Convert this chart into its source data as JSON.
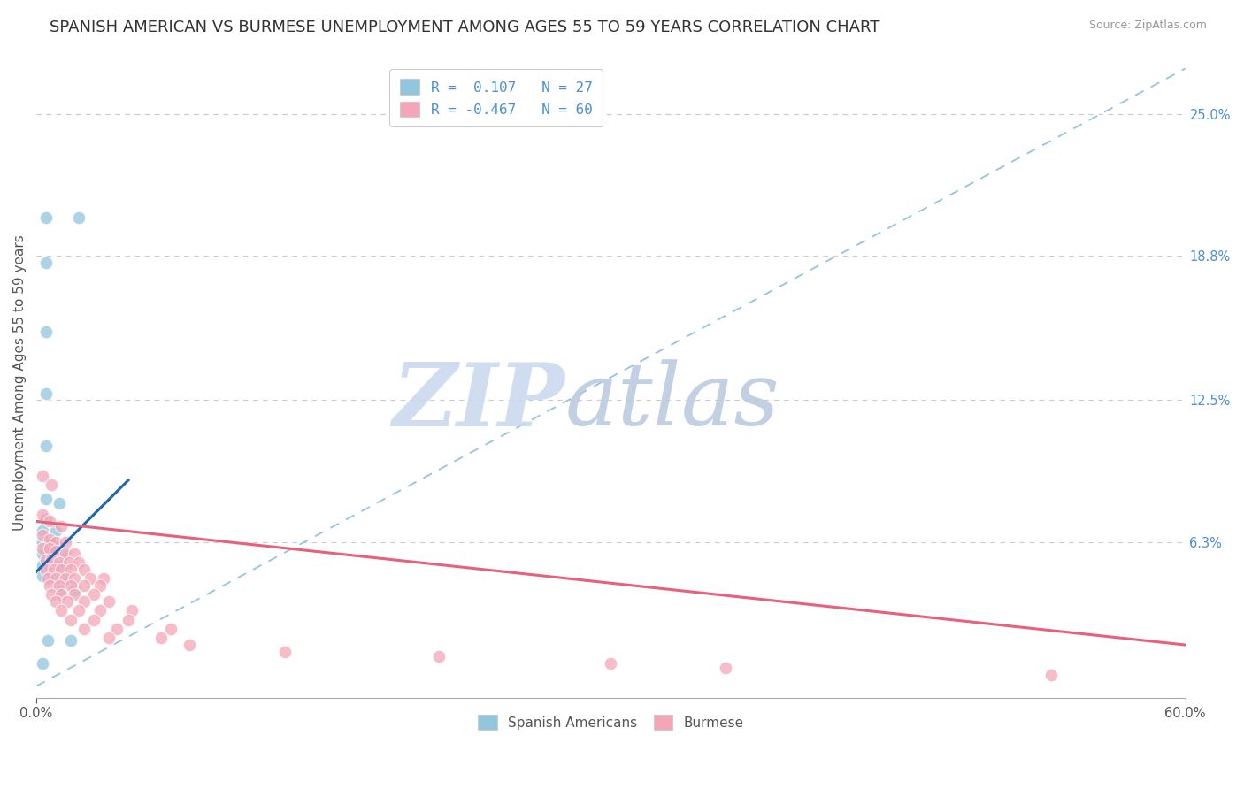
{
  "title": "SPANISH AMERICAN VS BURMESE UNEMPLOYMENT AMONG AGES 55 TO 59 YEARS CORRELATION CHART",
  "source": "Source: ZipAtlas.com",
  "ylabel": "Unemployment Among Ages 55 to 59 years",
  "xlim": [
    0.0,
    0.6
  ],
  "ylim": [
    -0.005,
    0.27
  ],
  "right_yticks": [
    0.0,
    0.063,
    0.125,
    0.188,
    0.25
  ],
  "right_yticklabels": [
    "",
    "6.3%",
    "12.5%",
    "18.8%",
    "25.0%"
  ],
  "blue_color": "#92c5de",
  "pink_color": "#f4a6b8",
  "blue_line_color": "#2166ac",
  "pink_line_color": "#e8607a",
  "diag_line_color": "#92c5de",
  "blue_scatter": [
    [
      0.005,
      0.205
    ],
    [
      0.022,
      0.205
    ],
    [
      0.005,
      0.185
    ],
    [
      0.005,
      0.155
    ],
    [
      0.005,
      0.128
    ],
    [
      0.005,
      0.105
    ],
    [
      0.005,
      0.082
    ],
    [
      0.012,
      0.08
    ],
    [
      0.005,
      0.073
    ],
    [
      0.003,
      0.068
    ],
    [
      0.01,
      0.068
    ],
    [
      0.003,
      0.063
    ],
    [
      0.008,
      0.063
    ],
    [
      0.003,
      0.058
    ],
    [
      0.008,
      0.058
    ],
    [
      0.014,
      0.058
    ],
    [
      0.003,
      0.053
    ],
    [
      0.007,
      0.053
    ],
    [
      0.013,
      0.053
    ],
    [
      0.003,
      0.048
    ],
    [
      0.008,
      0.048
    ],
    [
      0.015,
      0.048
    ],
    [
      0.012,
      0.042
    ],
    [
      0.02,
      0.042
    ],
    [
      0.006,
      0.02
    ],
    [
      0.018,
      0.02
    ],
    [
      0.003,
      0.01
    ]
  ],
  "pink_scatter": [
    [
      0.003,
      0.092
    ],
    [
      0.008,
      0.088
    ],
    [
      0.003,
      0.075
    ],
    [
      0.007,
      0.072
    ],
    [
      0.013,
      0.07
    ],
    [
      0.003,
      0.066
    ],
    [
      0.007,
      0.064
    ],
    [
      0.01,
      0.063
    ],
    [
      0.015,
      0.063
    ],
    [
      0.003,
      0.06
    ],
    [
      0.007,
      0.06
    ],
    [
      0.01,
      0.059
    ],
    [
      0.015,
      0.058
    ],
    [
      0.02,
      0.058
    ],
    [
      0.005,
      0.055
    ],
    [
      0.008,
      0.055
    ],
    [
      0.012,
      0.054
    ],
    [
      0.017,
      0.054
    ],
    [
      0.022,
      0.054
    ],
    [
      0.005,
      0.051
    ],
    [
      0.009,
      0.051
    ],
    [
      0.013,
      0.051
    ],
    [
      0.018,
      0.051
    ],
    [
      0.025,
      0.051
    ],
    [
      0.006,
      0.047
    ],
    [
      0.01,
      0.047
    ],
    [
      0.015,
      0.047
    ],
    [
      0.02,
      0.047
    ],
    [
      0.028,
      0.047
    ],
    [
      0.035,
      0.047
    ],
    [
      0.007,
      0.044
    ],
    [
      0.012,
      0.044
    ],
    [
      0.018,
      0.044
    ],
    [
      0.025,
      0.044
    ],
    [
      0.033,
      0.044
    ],
    [
      0.008,
      0.04
    ],
    [
      0.013,
      0.04
    ],
    [
      0.02,
      0.04
    ],
    [
      0.03,
      0.04
    ],
    [
      0.01,
      0.037
    ],
    [
      0.016,
      0.037
    ],
    [
      0.025,
      0.037
    ],
    [
      0.038,
      0.037
    ],
    [
      0.013,
      0.033
    ],
    [
      0.022,
      0.033
    ],
    [
      0.033,
      0.033
    ],
    [
      0.05,
      0.033
    ],
    [
      0.018,
      0.029
    ],
    [
      0.03,
      0.029
    ],
    [
      0.048,
      0.029
    ],
    [
      0.025,
      0.025
    ],
    [
      0.042,
      0.025
    ],
    [
      0.07,
      0.025
    ],
    [
      0.038,
      0.021
    ],
    [
      0.065,
      0.021
    ],
    [
      0.08,
      0.018
    ],
    [
      0.13,
      0.015
    ],
    [
      0.21,
      0.013
    ],
    [
      0.3,
      0.01
    ],
    [
      0.36,
      0.008
    ],
    [
      0.53,
      0.005
    ]
  ],
  "blue_line_x": [
    0.0,
    0.048
  ],
  "blue_line_y": [
    0.05,
    0.09
  ],
  "pink_line_x": [
    0.0,
    0.6
  ],
  "pink_line_y": [
    0.072,
    0.018
  ],
  "diag_line_x": [
    0.0,
    0.6
  ],
  "diag_line_y": [
    0.0,
    0.27
  ],
  "grid_color": "#cccccc",
  "background_color": "#ffffff",
  "title_fontsize": 13,
  "label_fontsize": 11,
  "tick_fontsize": 10.5,
  "watermark_zip": "ZIP",
  "watermark_atlas": "atlas",
  "watermark_color_zip": "#c8d8ee",
  "watermark_color_atlas": "#b8c8de"
}
